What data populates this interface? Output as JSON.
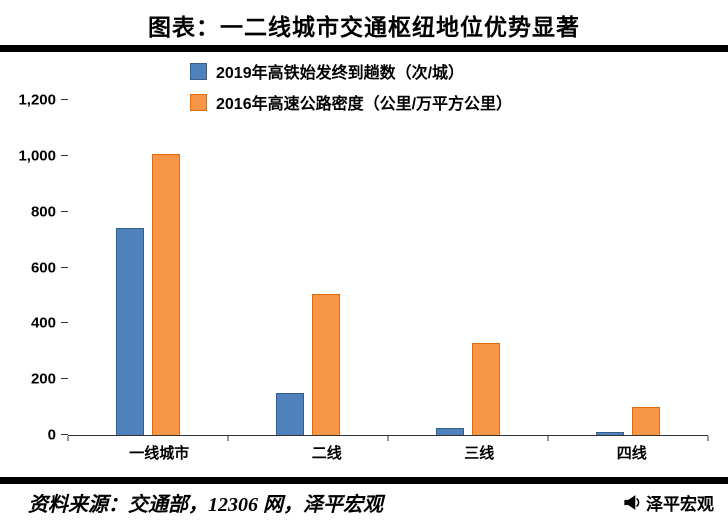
{
  "header": {
    "title": "图表：一二线城市交通枢纽地位优势显著"
  },
  "legend": [
    {
      "label": "2019年高铁始发终到趟数（次/城）",
      "color": "#4F81BD",
      "border": "#385D8A"
    },
    {
      "label": "2016年高速公路密度（公里/万平方公里）",
      "color": "#F79646",
      "border": "#E36C09"
    }
  ],
  "chart_data": {
    "type": "bar",
    "title": "图表：一二线城市交通枢纽地位优势显著",
    "categories": [
      "一线城市",
      "二线",
      "三线",
      "四线"
    ],
    "series": [
      {
        "name": "2019年高铁始发终到趟数（次/城）",
        "color": "#4F81BD",
        "border": "#385D8A",
        "values": [
          740,
          150,
          25,
          10
        ]
      },
      {
        "name": "2016年高速公路密度（公里/万平方公里）",
        "color": "#F79646",
        "border": "#E36C09",
        "values": [
          1005,
          505,
          330,
          100
        ]
      }
    ],
    "xlabel": "",
    "ylabel": "",
    "ylim": [
      0,
      1200
    ],
    "yticks": [
      0,
      200,
      400,
      600,
      800,
      1000,
      1200
    ],
    "ytick_labels": [
      "0",
      "200",
      "400",
      "600",
      "800",
      "1,000",
      "1,200"
    ],
    "grid": false,
    "legend_position": "top"
  },
  "footer": {
    "source": "资料来源：交通部，12306 网，泽平宏观",
    "brand": "泽平宏观"
  }
}
